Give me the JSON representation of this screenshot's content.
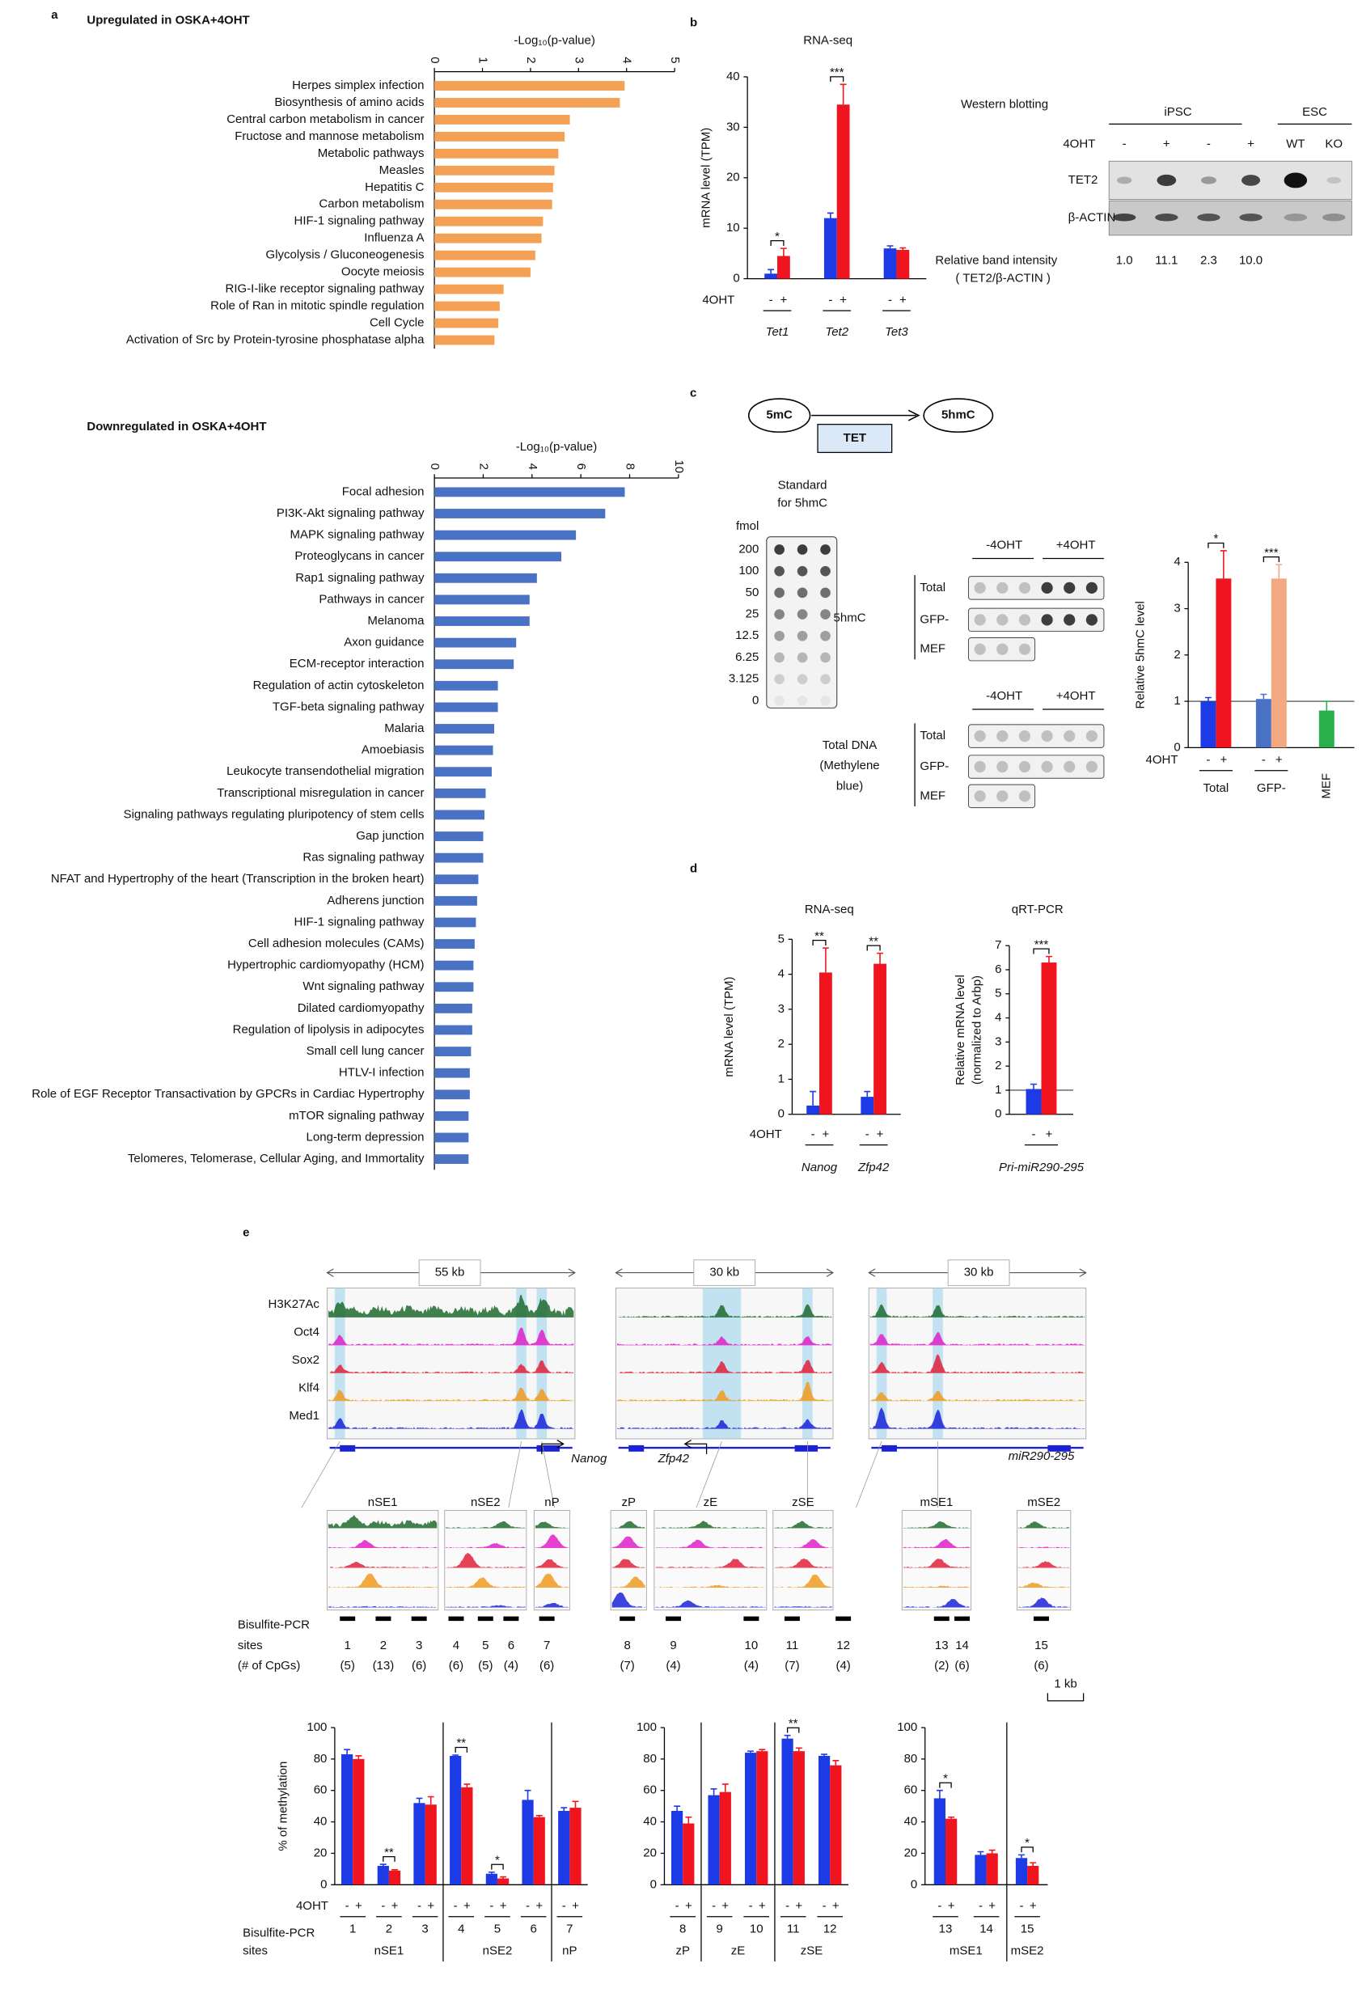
{
  "panels": [
    "a",
    "b",
    "c",
    "d",
    "e"
  ],
  "chart_data": [
    {
      "type": "barh",
      "title": "Upregulated in OSKA+4OHT",
      "xlabel": "-Log₁₀(p-value)",
      "categories": [
        "Herpes simplex infection",
        "Biosynthesis of amino acids",
        "Central carbon metabolism in cancer",
        "Fructose and mannose metabolism",
        "Metabolic pathways",
        "Measles",
        "Hepatitis C",
        "Carbon metabolism",
        "HIF-1 signaling pathway",
        "Influenza A",
        "Glycolysis / Gluconeogenesis",
        "Oocyte meiosis",
        "RIG-I-like receptor signaling pathway",
        "Role of Ran in mitotic spindle regulation",
        "Cell Cycle",
        "Activation of Src by Protein-tyrosine phosphatase alpha"
      ],
      "values": [
        3.96,
        3.86,
        2.82,
        2.71,
        2.58,
        2.5,
        2.47,
        2.45,
        2.26,
        2.23,
        2.1,
        2.0,
        1.44,
        1.36,
        1.33,
        1.25
      ],
      "color": "#f4a156",
      "xlim": [
        0,
        5
      ],
      "xticks": [
        0,
        1,
        2,
        3,
        4,
        5
      ]
    },
    {
      "type": "barh",
      "title": "Downregulated in OSKA+4OHT",
      "xlabel": "-Log₁₀(p-value)",
      "categories": [
        "Focal adhesion",
        "PI3K-Akt signaling pathway",
        "MAPK signaling pathway",
        "Proteoglycans in cancer",
        "Rap1 signaling pathway",
        "Pathways in cancer",
        "Melanoma",
        "Axon guidance",
        "ECM-receptor interaction",
        "Regulation of actin cytoskeleton",
        "TGF-beta signaling pathway",
        "Malaria",
        "Amoebiasis",
        "Leukocyte transendothelial migration",
        "Transcriptional misregulation in cancer",
        "Signaling pathways regulating pluripotency of stem cells",
        "Gap junction",
        "Ras signaling pathway",
        "NFAT and Hypertrophy of the heart (Transcription in the broken heart)",
        "Adherens junction",
        "HIF-1 signaling pathway",
        "Cell adhesion molecules (CAMs)",
        "Hypertrophic cardiomyopathy (HCM)",
        "Wnt signaling pathway",
        "Dilated cardiomyopathy",
        "Regulation of lipolysis in adipocytes",
        "Small cell lung cancer",
        "HTLV-I infection",
        "Role of EGF Receptor Transactivation by GPCRs in Cardiac Hypertrophy",
        "mTOR signaling pathway",
        "Long-term depression",
        "Telomeres, Telomerase, Cellular Aging, and Immortality"
      ],
      "values": [
        7.8,
        7.0,
        5.8,
        5.2,
        4.2,
        3.9,
        3.9,
        3.35,
        3.25,
        2.6,
        2.6,
        2.45,
        2.4,
        2.35,
        2.1,
        2.05,
        2.0,
        2.0,
        1.8,
        1.75,
        1.7,
        1.65,
        1.6,
        1.6,
        1.55,
        1.55,
        1.5,
        1.45,
        1.45,
        1.4,
        1.4,
        1.4
      ],
      "color": "#4a72c4",
      "xlim": [
        0,
        10
      ],
      "xticks": [
        0,
        2,
        4,
        6,
        8,
        10
      ]
    },
    {
      "type": "bar",
      "title": "RNA-seq",
      "ylabel": "mRNA level (TPM)",
      "xlabel": "4OHT",
      "categories": [
        "Tet1",
        "Tet2",
        "Tet3"
      ],
      "series": [
        {
          "name": "-",
          "color": "#1c3be6",
          "values": [
            1,
            12,
            6
          ],
          "errors": [
            0.8,
            1,
            0.5
          ]
        },
        {
          "name": "+",
          "color": "#f0141e",
          "values": [
            4.5,
            34.5,
            5.7
          ],
          "errors": [
            1.5,
            4,
            0.4
          ]
        }
      ],
      "significance": [
        "*",
        "***",
        null
      ],
      "ylim": [
        0,
        40
      ],
      "yticks": [
        0,
        10,
        20,
        30,
        40
      ]
    },
    {
      "type": "bar",
      "ylabel": "Relative 5hmC level",
      "xlabel": "4OHT",
      "categories": [
        "Total",
        "GFP-",
        "MEF"
      ],
      "series": [
        {
          "name": "-",
          "colors": [
            "#1c3be6",
            "#4a72c4",
            "#2ab04a"
          ],
          "values": [
            1.0,
            1.05,
            0.8
          ],
          "errors": [
            0.08,
            0.1,
            0.2
          ]
        },
        {
          "name": "+",
          "colors": [
            "#f0141e",
            "#f2a981",
            null
          ],
          "values": [
            3.65,
            3.65,
            null
          ],
          "errors": [
            0.6,
            0.3,
            null
          ]
        }
      ],
      "significance": [
        "*",
        "***",
        null
      ],
      "ylim": [
        0,
        4
      ],
      "yticks": [
        0,
        1,
        2,
        3,
        4
      ],
      "hline": 1
    },
    {
      "type": "bar",
      "title": "RNA-seq",
      "ylabel": "mRNA level (TPM)",
      "xlabel": "4OHT",
      "categories": [
        "Nanog",
        "Zfp42"
      ],
      "series": [
        {
          "name": "-",
          "color": "#1c3be6",
          "values": [
            0.25,
            0.5
          ],
          "errors": [
            0.4,
            0.15
          ]
        },
        {
          "name": "+",
          "color": "#f0141e",
          "values": [
            4.05,
            4.3
          ],
          "errors": [
            0.7,
            0.3
          ]
        }
      ],
      "significance": [
        "**",
        "**"
      ],
      "ylim": [
        0,
        5
      ],
      "yticks": [
        0,
        1,
        2,
        3,
        4,
        5
      ]
    },
    {
      "type": "bar",
      "title": "qRT-PCR",
      "ylabel": [
        "Relative mRNA level",
        "(normalized to Arbp)"
      ],
      "categories": [
        "Pri-miR290-295"
      ],
      "series": [
        {
          "name": "-",
          "color": "#1c3be6",
          "values": [
            1.05
          ],
          "errors": [
            0.2
          ]
        },
        {
          "name": "+",
          "color": "#f0141e",
          "values": [
            6.3
          ],
          "errors": [
            0.25
          ]
        }
      ],
      "significance": [
        "***"
      ],
      "ylim": [
        0,
        7
      ],
      "yticks": [
        0,
        1,
        2,
        3,
        4,
        5,
        6,
        7
      ],
      "hline": 1
    },
    {
      "type": "bar",
      "ylabel": "% of methylation",
      "xlabel": "4OHT",
      "site_label": [
        "Bisulfite-PCR",
        "sites"
      ],
      "groups": [
        {
          "name": "nSE1",
          "categories": [
            "1",
            "2",
            "3"
          ]
        },
        {
          "name": "nSE2",
          "categories": [
            "4",
            "5",
            "6"
          ]
        },
        {
          "name": "nP",
          "categories": [
            "7"
          ]
        }
      ],
      "series": [
        {
          "name": "-",
          "color": "#1c3be6",
          "values": [
            83,
            12,
            52,
            82,
            7,
            54,
            47
          ],
          "errors": [
            3,
            1,
            3,
            0.5,
            1,
            6,
            2
          ]
        },
        {
          "name": "+",
          "color": "#f0141e",
          "values": [
            80,
            9,
            51,
            62,
            4,
            43,
            49
          ],
          "errors": [
            2,
            0.5,
            5,
            2,
            1,
            1,
            4
          ]
        }
      ],
      "significance": [
        null,
        "**",
        null,
        "**",
        "*",
        null,
        null
      ],
      "ylim": [
        0,
        100
      ],
      "yticks": [
        0,
        20,
        40,
        60,
        80,
        100
      ]
    },
    {
      "type": "bar",
      "groups": [
        {
          "name": "zP",
          "categories": [
            "8"
          ]
        },
        {
          "name": "zE",
          "categories": [
            "9",
            "10"
          ]
        },
        {
          "name": "zSE",
          "categories": [
            "11",
            "12"
          ]
        }
      ],
      "series": [
        {
          "name": "-",
          "color": "#1c3be6",
          "values": [
            47,
            57,
            84,
            93,
            82
          ],
          "errors": [
            3,
            4,
            1,
            2,
            1
          ]
        },
        {
          "name": "+",
          "color": "#f0141e",
          "values": [
            39,
            59,
            85,
            85,
            76
          ],
          "errors": [
            4,
            5,
            1,
            2,
            3
          ]
        }
      ],
      "significance": [
        null,
        null,
        null,
        "**",
        null
      ],
      "ylim": [
        0,
        100
      ],
      "yticks": [
        0,
        20,
        40,
        60,
        80,
        100
      ]
    },
    {
      "type": "bar",
      "groups": [
        {
          "name": "mSE1",
          "categories": [
            "13",
            "14"
          ]
        },
        {
          "name": "mSE2",
          "categories": [
            "15"
          ]
        }
      ],
      "series": [
        {
          "name": "-",
          "color": "#1c3be6",
          "values": [
            55,
            19,
            17
          ],
          "errors": [
            5,
            2,
            2
          ]
        },
        {
          "name": "+",
          "color": "#f0141e",
          "values": [
            42,
            20,
            12
          ],
          "errors": [
            1,
            2,
            2
          ]
        }
      ],
      "significance": [
        "*",
        null,
        "*"
      ],
      "ylim": [
        0,
        100
      ],
      "yticks": [
        0,
        20,
        40,
        60,
        80,
        100
      ]
    }
  ],
  "western_blot": {
    "title": "Western blotting",
    "groups": [
      "iPSC",
      "ESC"
    ],
    "treatment": "4OHT",
    "lanes": [
      "-",
      "+",
      "-",
      "+",
      "WT",
      "KO"
    ],
    "rows": [
      "TET2",
      "β-ACTIN"
    ],
    "intensity_title": "Relative band intensity",
    "intensity_subtitle": "( TET2/β-ACTIN )",
    "intensities": [
      "1.0",
      "11.1",
      "2.3",
      "10.0"
    ]
  },
  "tet_scheme": {
    "substrate": "5mC",
    "product": "5hmC",
    "enzyme": "TET"
  },
  "dot_blot": {
    "standard_title": [
      "Standard",
      "for 5hmC"
    ],
    "unit": "fmol",
    "standards": [
      "200",
      "100",
      "50",
      "25",
      "12.5",
      "6.25",
      "3.125",
      "0"
    ],
    "conditions": [
      "-4OHT",
      "+4OHT"
    ],
    "blocks": [
      {
        "label": [
          "5hmC"
        ],
        "rows": [
          "Total",
          "GFP-",
          "MEF"
        ]
      },
      {
        "label": [
          "Total DNA",
          "(Methylene",
          "blue)"
        ],
        "rows": [
          "Total",
          "GFP-",
          "MEF"
        ]
      }
    ]
  },
  "tracks": {
    "scales": [
      "55 kb",
      "30 kb",
      "30 kb"
    ],
    "marks": [
      "H3K27Ac",
      "Oct4",
      "Sox2",
      "Klf4",
      "Med1"
    ],
    "genes": [
      "Nanog",
      "Zfp42",
      "miR290-295"
    ],
    "regions": [
      "nSE1",
      "nSE2",
      "nP",
      "zP",
      "zE",
      "zSE",
      "mSE1",
      "mSE2"
    ],
    "sites_label": [
      "Bisulfite-PCR",
      "sites",
      "(# of CpGs)"
    ],
    "sites": [
      {
        "label": "1",
        "cpgs": "(5)"
      },
      {
        "label": "2",
        "cpgs": "(13)"
      },
      {
        "label": "3",
        "cpgs": "(6)"
      },
      {
        "label": "4",
        "cpgs": "(6)"
      },
      {
        "label": "5",
        "cpgs": "(5)"
      },
      {
        "label": "6",
        "cpgs": "(4)"
      },
      {
        "label": "7",
        "cpgs": "(6)"
      },
      {
        "label": "8",
        "cpgs": "(7)"
      },
      {
        "label": "9",
        "cpgs": "(4)"
      },
      {
        "label": "10",
        "cpgs": "(4)"
      },
      {
        "label": "11",
        "cpgs": "(7)"
      },
      {
        "label": "12",
        "cpgs": "(4)"
      },
      {
        "label": "13",
        "cpgs": "(2)"
      },
      {
        "label": "14",
        "cpgs": "(6)"
      },
      {
        "label": "15",
        "cpgs": "(6)"
      }
    ],
    "scale_bar": "1 kb"
  }
}
